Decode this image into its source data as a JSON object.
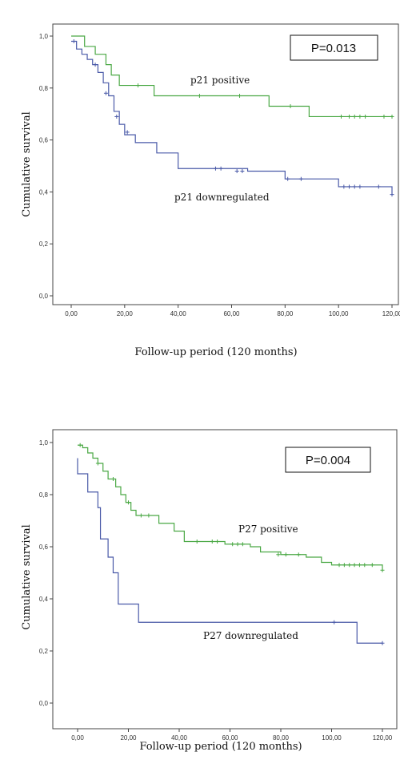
{
  "chart_data": [
    {
      "type": "line",
      "p_value": "P=0.013",
      "xlabel": "Follow-up period (120 months)",
      "ylabel": "Cumulative survival",
      "xlim": [
        0,
        120
      ],
      "ylim": [
        0,
        1
      ],
      "x_ticks": [
        0,
        20,
        40,
        60,
        80,
        100,
        120
      ],
      "x_tick_labels": [
        "0,00",
        "20,00",
        "40,00",
        "60,00",
        "80,00",
        "100,00",
        "120,00"
      ],
      "y_ticks": [
        0,
        0.2,
        0.4,
        0.6,
        0.8,
        1.0
      ],
      "y_tick_labels": [
        "0,0",
        "0,2",
        "0,4",
        "0,6",
        "0,8",
        "1,0"
      ],
      "series": [
        {
          "name": "p21 positive",
          "color": "#4aa844",
          "steps": [
            [
              0,
              1.0
            ],
            [
              5,
              0.96
            ],
            [
              9,
              0.93
            ],
            [
              13,
              0.89
            ],
            [
              15,
              0.85
            ],
            [
              18,
              0.81
            ],
            [
              31,
              0.81
            ],
            [
              31,
              0.77
            ],
            [
              74,
              0.77
            ],
            [
              74,
              0.73
            ],
            [
              89,
              0.73
            ],
            [
              89,
              0.69
            ],
            [
              120,
              0.69
            ]
          ],
          "censors": [
            [
              25,
              0.81
            ],
            [
              48,
              0.77
            ],
            [
              63,
              0.77
            ],
            [
              82,
              0.73
            ],
            [
              101,
              0.69
            ],
            [
              104,
              0.69
            ],
            [
              106,
              0.69
            ],
            [
              108,
              0.69
            ],
            [
              110,
              0.69
            ],
            [
              117,
              0.69
            ],
            [
              120,
              0.69
            ]
          ]
        },
        {
          "name": "p21 downregulated",
          "color": "#4a5aa8",
          "steps": [
            [
              0,
              0.98
            ],
            [
              2,
              0.95
            ],
            [
              4,
              0.93
            ],
            [
              6,
              0.91
            ],
            [
              8,
              0.89
            ],
            [
              10,
              0.86
            ],
            [
              12,
              0.82
            ],
            [
              14,
              0.77
            ],
            [
              16,
              0.71
            ],
            [
              18,
              0.66
            ],
            [
              20,
              0.62
            ],
            [
              24,
              0.59
            ],
            [
              30,
              0.59
            ],
            [
              32,
              0.55
            ],
            [
              40,
              0.55
            ],
            [
              40,
              0.49
            ],
            [
              52,
              0.49
            ],
            [
              66,
              0.48
            ],
            [
              80,
              0.45
            ],
            [
              98,
              0.45
            ],
            [
              100,
              0.42
            ],
            [
              117,
              0.42
            ],
            [
              120,
              0.39
            ]
          ],
          "censors": [
            [
              1,
              0.98
            ],
            [
              9,
              0.89
            ],
            [
              13,
              0.78
            ],
            [
              17,
              0.69
            ],
            [
              21,
              0.63
            ],
            [
              54,
              0.49
            ],
            [
              56,
              0.49
            ],
            [
              62,
              0.48
            ],
            [
              64,
              0.48
            ],
            [
              81,
              0.45
            ],
            [
              86,
              0.45
            ],
            [
              102,
              0.42
            ],
            [
              104,
              0.42
            ],
            [
              106,
              0.42
            ],
            [
              108,
              0.42
            ],
            [
              115,
              0.42
            ],
            [
              120,
              0.39
            ]
          ]
        }
      ]
    },
    {
      "type": "line",
      "p_value": "P=0.004",
      "xlabel": "Follow-up period (120 months)",
      "ylabel": "Cumulative survival",
      "xlim": [
        0,
        120
      ],
      "ylim": [
        0,
        1
      ],
      "x_ticks": [
        0,
        20,
        40,
        60,
        80,
        100,
        120
      ],
      "x_tick_labels": [
        "0,00",
        "20,00",
        "40,00",
        "60,00",
        "80,00",
        "100,00",
        "120,00"
      ],
      "y_ticks": [
        0,
        0.2,
        0.4,
        0.6,
        0.8,
        1.0
      ],
      "y_tick_labels": [
        "0,0",
        "0,2",
        "0,4",
        "0,6",
        "0,8",
        "1,0"
      ],
      "series": [
        {
          "name": "P27 positive",
          "color": "#4aa844",
          "steps": [
            [
              0,
              0.99
            ],
            [
              2,
              0.98
            ],
            [
              4,
              0.96
            ],
            [
              6,
              0.94
            ],
            [
              8,
              0.92
            ],
            [
              10,
              0.89
            ],
            [
              12,
              0.86
            ],
            [
              15,
              0.83
            ],
            [
              17,
              0.8
            ],
            [
              19,
              0.77
            ],
            [
              21,
              0.74
            ],
            [
              23,
              0.72
            ],
            [
              30,
              0.72
            ],
            [
              32,
              0.69
            ],
            [
              38,
              0.66
            ],
            [
              42,
              0.62
            ],
            [
              52,
              0.62
            ],
            [
              58,
              0.61
            ],
            [
              68,
              0.6
            ],
            [
              72,
              0.58
            ],
            [
              80,
              0.57
            ],
            [
              90,
              0.56
            ],
            [
              96,
              0.54
            ],
            [
              100,
              0.53
            ],
            [
              118,
              0.53
            ],
            [
              120,
              0.51
            ]
          ],
          "censors": [
            [
              1,
              0.99
            ],
            [
              8,
              0.92
            ],
            [
              14,
              0.86
            ],
            [
              20,
              0.77
            ],
            [
              25,
              0.72
            ],
            [
              28,
              0.72
            ],
            [
              47,
              0.62
            ],
            [
              53,
              0.62
            ],
            [
              55,
              0.62
            ],
            [
              61,
              0.61
            ],
            [
              63,
              0.61
            ],
            [
              65,
              0.61
            ],
            [
              79,
              0.57
            ],
            [
              82,
              0.57
            ],
            [
              87,
              0.57
            ],
            [
              103,
              0.53
            ],
            [
              105,
              0.53
            ],
            [
              107,
              0.53
            ],
            [
              109,
              0.53
            ],
            [
              111,
              0.53
            ],
            [
              113,
              0.53
            ],
            [
              116,
              0.53
            ],
            [
              120,
              0.51
            ]
          ]
        },
        {
          "name": "P27 downregulated",
          "color": "#4a5aa8",
          "steps": [
            [
              0,
              0.94
            ],
            [
              0,
              0.88
            ],
            [
              4,
              0.88
            ],
            [
              4,
              0.81
            ],
            [
              8,
              0.81
            ],
            [
              8,
              0.75
            ],
            [
              9,
              0.75
            ],
            [
              9,
              0.63
            ],
            [
              12,
              0.63
            ],
            [
              12,
              0.56
            ],
            [
              14,
              0.56
            ],
            [
              14,
              0.5
            ],
            [
              16,
              0.5
            ],
            [
              16,
              0.38
            ],
            [
              24,
              0.38
            ],
            [
              24,
              0.31
            ],
            [
              110,
              0.31
            ],
            [
              110,
              0.23
            ],
            [
              120,
              0.23
            ]
          ],
          "censors": [
            [
              101,
              0.31
            ],
            [
              120,
              0.23
            ]
          ]
        }
      ]
    }
  ]
}
